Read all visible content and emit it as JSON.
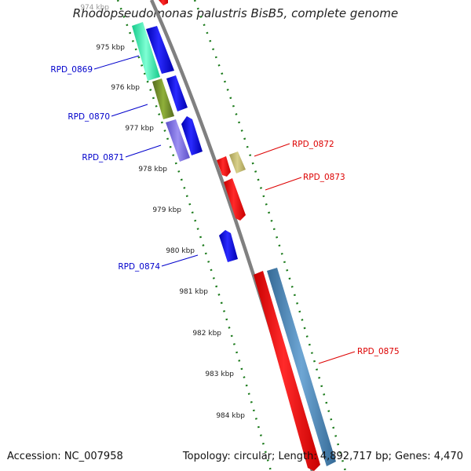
{
  "title": "Rhodopseudomonas palustris BisB5, complete genome",
  "footer": {
    "accession": "Accession: NC_007958",
    "stats": "Topology: circular; Length: 4,892,717 bp; Genes: 4,470"
  },
  "ticks": [
    "974 kbp",
    "975 kbp",
    "976 kbp",
    "977 kbp",
    "978 kbp",
    "979 kbp",
    "980 kbp",
    "981 kbp",
    "982 kbp",
    "983 kbp",
    "984 kbp"
  ],
  "gene_labels": [
    {
      "text": "RPD_0869",
      "strand": "minus"
    },
    {
      "text": "RPD_0870",
      "strand": "minus"
    },
    {
      "text": "RPD_0871",
      "strand": "minus"
    },
    {
      "text": "RPD_0872",
      "strand": "plus"
    },
    {
      "text": "RPD_0873",
      "strand": "plus"
    },
    {
      "text": "RPD_0874",
      "strand": "minus"
    },
    {
      "text": "RPD_0875",
      "strand": "plus"
    }
  ],
  "colors": {
    "backbone": "#808080",
    "tick_green": "#1a7a1a",
    "minus_label": "#0000cc",
    "plus_label": "#dd0000",
    "cds_blue": "#0000ee",
    "cds_red": "#ff0000",
    "teal": "#1de9a0",
    "olive": "#6b8e23",
    "lavender": "#7b68ee",
    "khaki": "#bdb76b",
    "steel": "#4682b4"
  }
}
